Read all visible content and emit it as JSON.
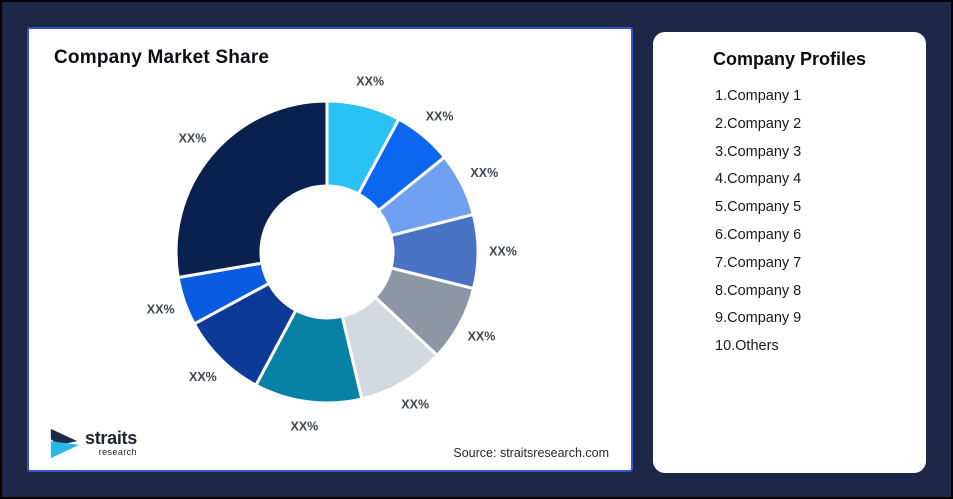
{
  "page": {
    "background_color": "#1C2845",
    "outer_border_color": "#000000"
  },
  "chart_card": {
    "title": "Company Market Share",
    "source": "Source: straitsresearch.com",
    "border_color": "#3752D6",
    "logo": {
      "brand": "straits",
      "sub": "research",
      "navy": "#1B2A4A",
      "cyan": "#29B7E8"
    }
  },
  "profiles_card": {
    "title": "Company Profiles",
    "items": [
      "1.Company 1",
      "2.Company 2",
      "3.Company 3",
      "4.Company 4",
      "5.Company 5",
      "6.Company 6",
      "7.Company 7",
      "8.Company 8",
      "9.Company 9",
      "10.Others"
    ]
  },
  "chart_data": {
    "type": "pie",
    "subtype": "donut",
    "title": "Company Market Share",
    "direction": "clockwise",
    "start_angle_deg": 0,
    "inner_radius_ratio": 0.44,
    "legend": "none",
    "labels": [
      "XX%",
      "XX%",
      "XX%",
      "XX%",
      "XX%",
      "XX%",
      "XX%",
      "XX%",
      "XX%",
      "XX%"
    ],
    "values": [
      7.9,
      6.3,
      6.8,
      7.9,
      8.1,
      9.3,
      11.5,
      9.3,
      5.2,
      27.7
    ],
    "values_note": "percent shares estimated from arc angles; on-screen labels are placeholder XX%",
    "colors": [
      "#2AC2F5",
      "#0B66F0",
      "#6FA0F2",
      "#4A73C4",
      "#8E96A5",
      "#D4D8DF",
      "#0881A5",
      "#0C3A96",
      "#0B5BE0",
      "#0A2150"
    ],
    "source": "Source: straitsresearch.com"
  }
}
